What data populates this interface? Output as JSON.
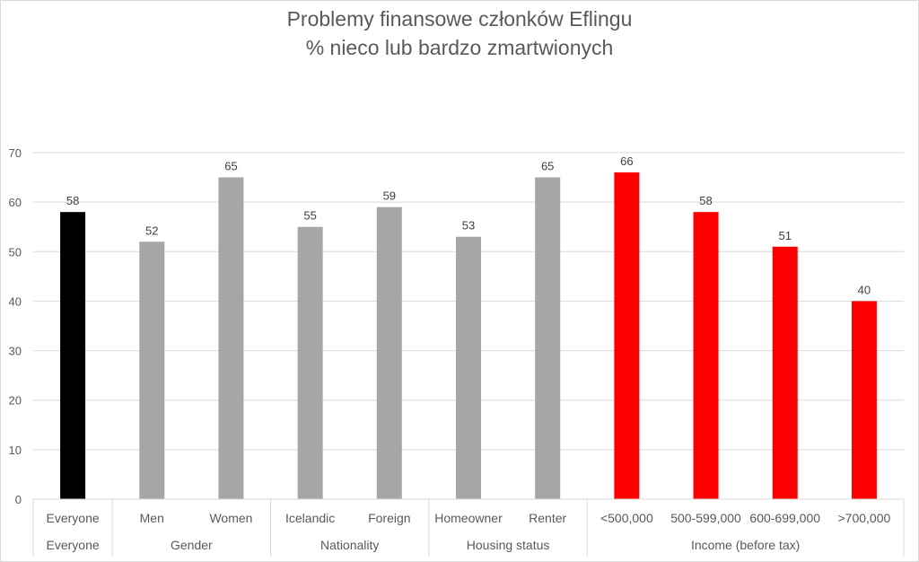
{
  "chart_data": {
    "type": "bar",
    "title_lines": [
      "Problemy finansowe członków Eflingu",
      "% nieco lub bardzo zmartwionych"
    ],
    "categories": [
      "Everyone",
      "Men",
      "Women",
      "Icelandic",
      "Foreign",
      "Homeowner",
      "Renter",
      "<500,000",
      "500-599,000",
      "600-699,000",
      ">700,000"
    ],
    "values": [
      58,
      52,
      65,
      55,
      59,
      53,
      65,
      66,
      58,
      51,
      40
    ],
    "bar_colors": [
      "#000000",
      "#a6a6a6",
      "#a6a6a6",
      "#a6a6a6",
      "#a6a6a6",
      "#a6a6a6",
      "#a6a6a6",
      "#ff0000",
      "#ff0000",
      "#ff0000",
      "#ff0000"
    ],
    "groups": [
      {
        "label": "Everyone",
        "start": 0,
        "end": 0
      },
      {
        "label": "Gender",
        "start": 1,
        "end": 2
      },
      {
        "label": "Nationality",
        "start": 3,
        "end": 4
      },
      {
        "label": "Housing status",
        "start": 5,
        "end": 6
      },
      {
        "label": "Income (before tax)",
        "start": 7,
        "end": 10
      }
    ],
    "ylim": [
      0,
      70
    ],
    "yticks": [
      0,
      10,
      20,
      30,
      40,
      50,
      60,
      70
    ],
    "grid": true,
    "data_labels": true,
    "legend": "none"
  }
}
